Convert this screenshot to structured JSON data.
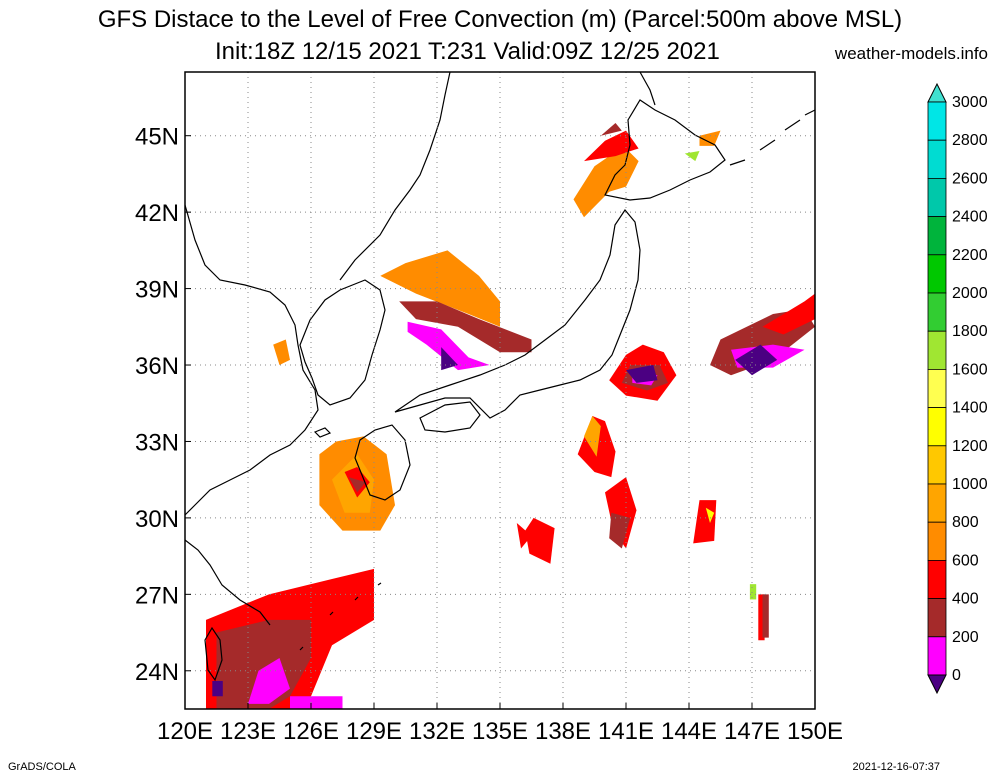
{
  "title": {
    "line1": "GFS Distace to the Level of Free Convection (m) (Parcel:500m above MSL)",
    "line2": "Init:18Z 12/15 2021 T:231 Valid:09Z 12/25 2021",
    "site": "weather-models.info"
  },
  "footer": {
    "left": "GrADS/COLA",
    "right": "2021-12-16-07:37"
  },
  "map": {
    "lon_range": [
      120,
      150
    ],
    "lat_range": [
      22.5,
      47.5
    ],
    "lon_ticks": [
      "120E",
      "123E",
      "126E",
      "129E",
      "132E",
      "135E",
      "138E",
      "141E",
      "144E",
      "147E",
      "150E"
    ],
    "lat_ticks": [
      "24N",
      "27N",
      "30N",
      "33N",
      "36N",
      "39N",
      "42N",
      "45N"
    ],
    "lon_tick_values": [
      120,
      123,
      126,
      129,
      132,
      135,
      138,
      141,
      144,
      147,
      150
    ],
    "lat_tick_values": [
      24,
      27,
      30,
      33,
      36,
      39,
      42,
      45
    ]
  },
  "colorbar": {
    "labels": [
      "0",
      "200",
      "400",
      "600",
      "800",
      "1000",
      "1200",
      "1400",
      "1600",
      "1800",
      "2000",
      "2200",
      "2400",
      "2600",
      "2800",
      "3000"
    ],
    "colors": [
      "#4b0082",
      "#ff00ff",
      "#a52a2a",
      "#ff0000",
      "#ff8c00",
      "#ffa500",
      "#ffc800",
      "#ffff00",
      "#ffff50",
      "#a0e632",
      "#32cd32",
      "#00c800",
      "#00b43c",
      "#00c8aa",
      "#00dcd2",
      "#00e6e6"
    ],
    "arrow_low": "#4b0082",
    "arrow_high": "#40e0d0"
  },
  "field_colors": {
    "c0": "#4b0082",
    "c200": "#ff00ff",
    "c400": "#a52a2a",
    "c600": "#ff0000",
    "c800": "#ff8c00",
    "c1000": "#ffa500",
    "c1400": "#ffff00",
    "c1800": "#a0e632"
  }
}
